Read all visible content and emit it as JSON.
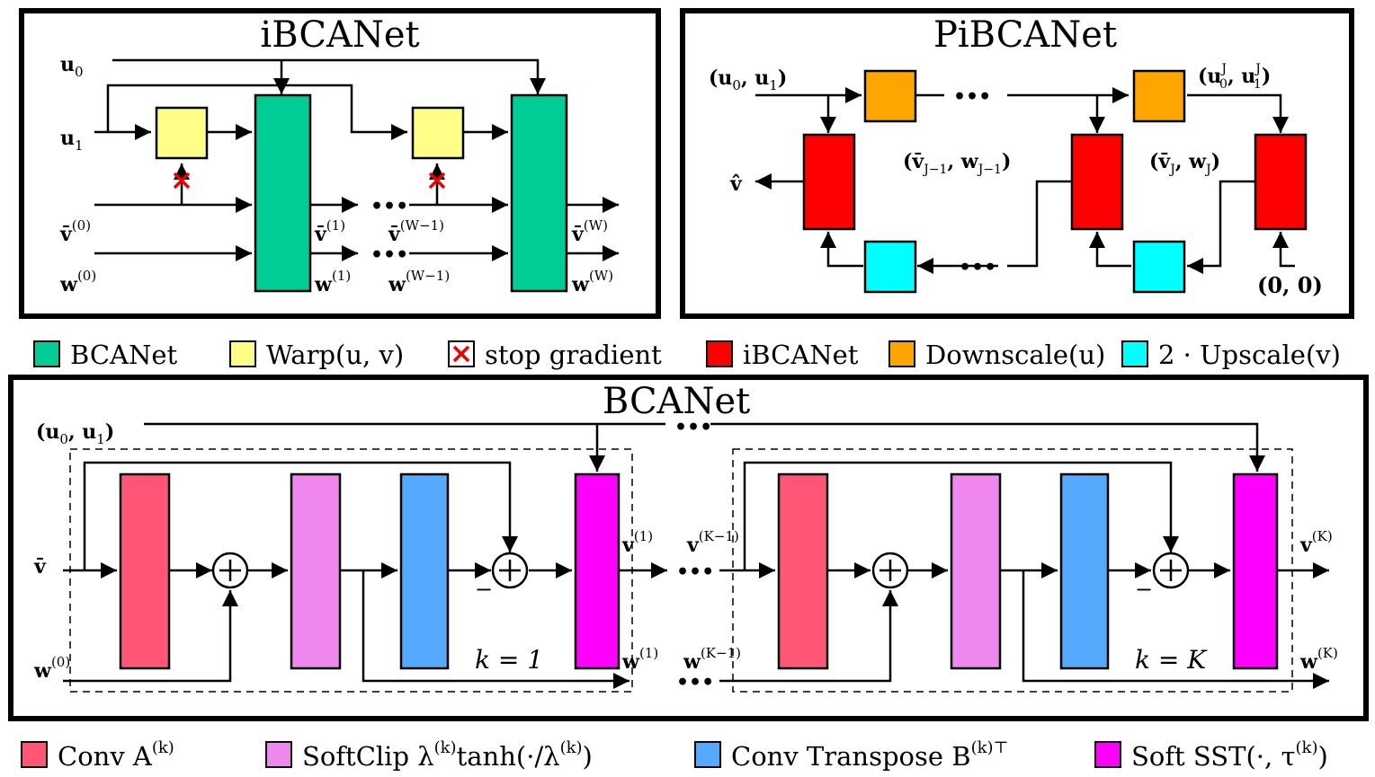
{
  "ibcanet": {
    "title": "iBCANet",
    "labels": {
      "u0": "u",
      "u0_sub": "0",
      "u1": "u",
      "u1_sub": "1",
      "v0": "v̄",
      "v0_sup": "(0)",
      "w0": "w",
      "w0_sup": "(0)",
      "v1": "v̄",
      "v1_sup": "(1)",
      "w1": "w",
      "w1_sup": "(1)",
      "vW1": "v̄",
      "vW1_sup": "(W−1)",
      "wW1": "w",
      "wW1_sup": "(W−1)",
      "vW": "v̄",
      "vW_sup": "(W)",
      "wW": "w",
      "wW_sup": "(W)",
      "dots": "•••"
    }
  },
  "pibcanet": {
    "title": "PiBCANet",
    "labels": {
      "input": "(u",
      "input_sub0": "0",
      "input_mid": ", u",
      "input_sub1": "1",
      "input_end": ")",
      "inputJ": "(u",
      "inputJ_sup0": "J",
      "inputJ_sub0": "0",
      "inputJ_mid": ", u",
      "inputJ_sup1": "J",
      "inputJ_sub1": "1",
      "inputJ_end": ")",
      "vhat": "v̂",
      "vJ1": "(v̄",
      "vJ1_sub": "J−1",
      "vJ1_mid": ", w",
      "vJ1_sub2": "J−1",
      "vJ1_end": ")",
      "vJ": "(v̄",
      "vJ_sub": "J",
      "vJ_mid": ", w",
      "vJ_sub2": "J",
      "vJ_end": ")",
      "zero": "(0, 0)",
      "dots": "•••"
    }
  },
  "legend_top": [
    {
      "label": "BCANet",
      "color": "#00cc96"
    },
    {
      "label": "Warp(u, v)",
      "color": "#ffff88"
    },
    {
      "label": "stop gradient",
      "color": "#ffffff",
      "marker": "red-x"
    },
    {
      "label": "iBCANet",
      "color": "#ff0000"
    },
    {
      "label": "Downscale(u)",
      "color": "#ffa500"
    },
    {
      "label": "2 · Upscale(v)",
      "color": "#00ffff"
    }
  ],
  "bcanet": {
    "title": "BCANet",
    "labels": {
      "input": "(u",
      "input_sub0": "0",
      "input_mid": ", u",
      "input_sub1": "1",
      "input_end": ")",
      "vbar": "v̄",
      "w0": "w",
      "w0_sup": "(0)",
      "v1": "v",
      "v1_sup": "(1)",
      "w1": "w",
      "w1_sup": "(1)",
      "vK1": "v",
      "vK1_sup": "(K−1)",
      "wK1": "w",
      "wK1_sup": "(K−1)",
      "vK": "v",
      "vK_sup": "(K)",
      "wK": "w",
      "wK_sup": "(K)",
      "k1": "k = 1",
      "kK": "k = K",
      "minus": "−",
      "plus": "+",
      "dots": "•••"
    }
  },
  "legend_bottom": [
    {
      "label": "Conv A",
      "sup": "(k)",
      "color": "#ff5577"
    },
    {
      "label": "SoftClip λ",
      "sup": "(k)",
      "tail": "tanh(·/λ",
      "tail_sup": "(k)",
      "tail_end": ")",
      "color": "#ee88ee"
    },
    {
      "label": "Conv Transpose B",
      "sup": "(k)⊤",
      "color": "#55aaff"
    },
    {
      "label": "Soft SST(·, τ",
      "sup": "(k)",
      "tail_end": ")",
      "color": "#ff00ff"
    }
  ]
}
